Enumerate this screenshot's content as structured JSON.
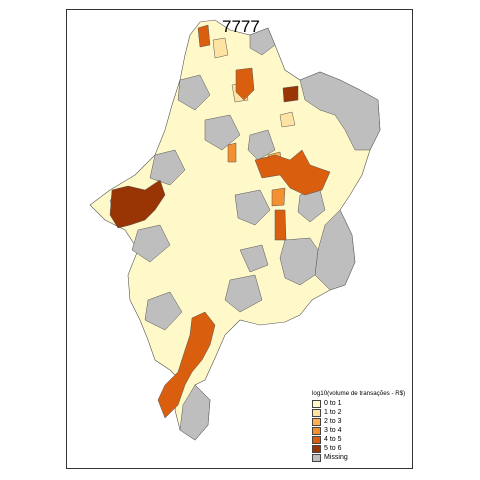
{
  "map": {
    "title": "7777",
    "legend_title": "log10(volume de transações - R$)",
    "legend": [
      {
        "label": "0 to 1",
        "color": "#fff8c8"
      },
      {
        "label": "1 to 2",
        "color": "#fee3a2"
      },
      {
        "label": "2 to 3",
        "color": "#fdb050"
      },
      {
        "label": "3 to 4",
        "color": "#f59030"
      },
      {
        "label": "4 to 5",
        "color": "#d95f0e"
      },
      {
        "label": "5 to 6",
        "color": "#993404"
      },
      {
        "label": "Missing",
        "color": "#bebebe"
      }
    ]
  }
}
